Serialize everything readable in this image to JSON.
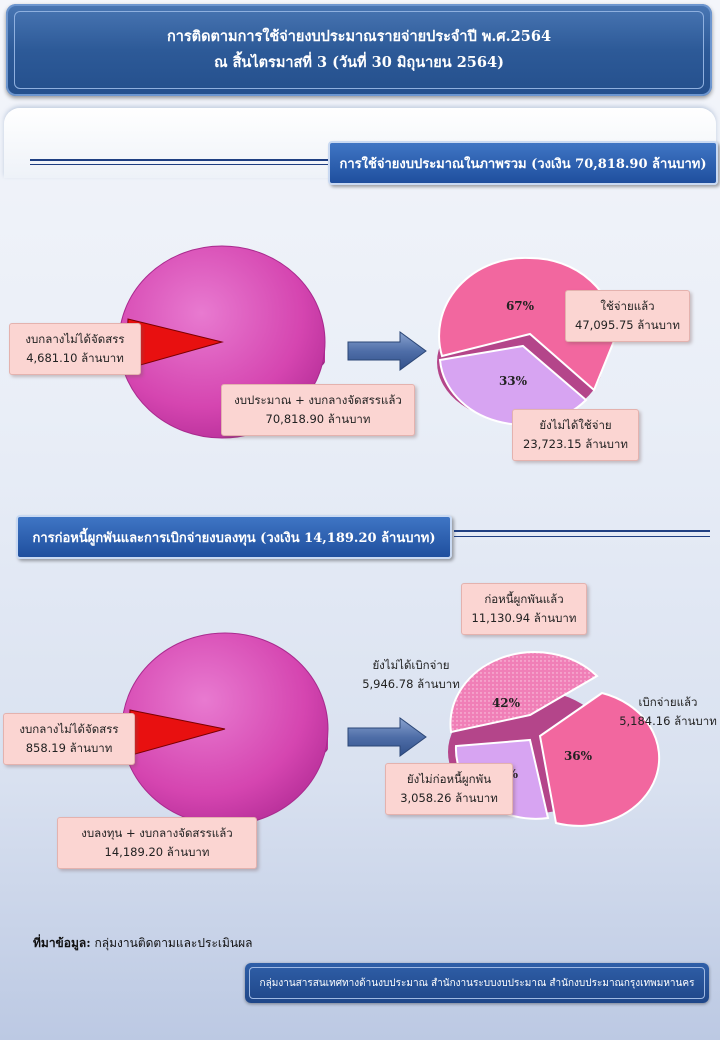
{
  "header": {
    "line1": "การติดตามการใช้จ่ายงบประมาณรายจ่ายประจำปี พ.ศ.2564",
    "line2": "ณ สิ้นไตรมาสที่ 3  (วันที่ 30 มิถุนายน 2564)"
  },
  "chart_data": [
    {
      "type": "pie",
      "title": "การใช้จ่ายงบประมาณในภาพรวม  (วงเงิน 70,818.90 ล้านบาท)",
      "source_pie": {
        "slices": [
          {
            "label": "งบประมาณ + งบกลางจัดสรรแล้ว",
            "value_text": "70,818.90  ล้านบาท",
            "value": 70818.9,
            "color": "#d94fb4"
          },
          {
            "label": "งบกลางไม่ได้จัดสรร",
            "value_text": "4,681.10  ล้านบาท",
            "value": 4681.1,
            "color": "#e81010"
          }
        ]
      },
      "result_pie": {
        "slices": [
          {
            "label": "ใช้จ่ายแล้ว",
            "value_text": "47,095.75 ล้านบาท",
            "value": 47095.75,
            "pct": "67%",
            "color": "#f2679f"
          },
          {
            "label": "ยังไม่ได้ใช้จ่าย",
            "value_text": "23,723.15  ล้านบาท",
            "value": 23723.15,
            "pct": "33%",
            "color": "#d7a4f2"
          }
        ]
      }
    },
    {
      "type": "pie",
      "title": "การก่อหนี้ผูกพันและการเบิกจ่ายงบลงทุน  (วงเงิน 14,189.20  ล้านบาท)",
      "source_pie": {
        "slices": [
          {
            "label": "งบลงทุน + งบกลางจัดสรรแล้ว",
            "value_text": "14,189.20  ล้านบาท",
            "value": 14189.2,
            "color": "#d94fb4"
          },
          {
            "label": "งบกลางไม่ได้จัดสรร",
            "value_text": "858.19  ล้านบาท",
            "value": 858.19,
            "color": "#e81010"
          }
        ]
      },
      "result_pie": {
        "group_label": "ก่อหนี้ผูกพันแล้ว",
        "group_value_text": "11,130.94  ล้านบาท",
        "slices": [
          {
            "label": "ยังไม่ได้เบิกจ่าย",
            "value_text": "5,946.78  ล้านบาท",
            "value": 5946.78,
            "pct": "42%",
            "color": "#f07fb7"
          },
          {
            "label": "เบิกจ่ายแล้ว",
            "value_text": "5,184.16  ล้านบาท",
            "value": 5184.16,
            "pct": "36%",
            "color": "#f2679f"
          },
          {
            "label": "ยังไม่ก่อหนี้ผูกพัน",
            "value_text": "3,058.26  ล้านบาท",
            "value": 3058.26,
            "pct": "22%",
            "color": "#d7a4f2"
          }
        ]
      }
    }
  ],
  "source": {
    "label": "ที่มาข้อมูล:",
    "text": " กลุ่มงานติดตามและประเมินผล"
  },
  "footer": {
    "text": "กลุ่มงานสารสนเทศทางด้านงบประมาณ สำนักงานระบบงบประมาณ สำนักงบประมาณกรุงเทพมหานคร"
  }
}
